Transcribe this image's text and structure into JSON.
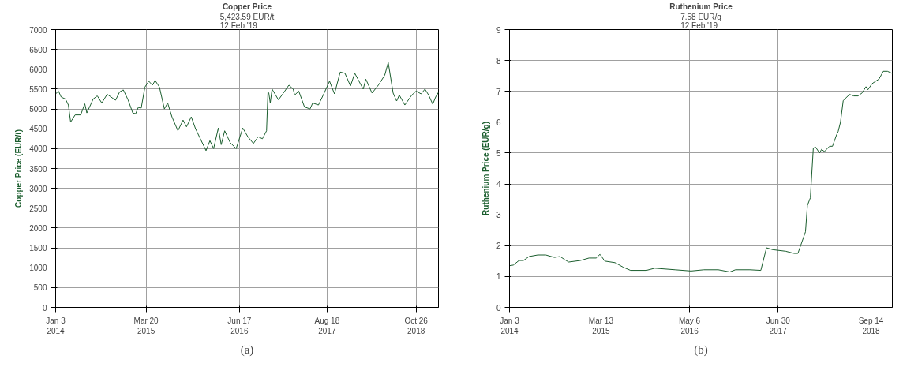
{
  "chart_data": [
    {
      "type": "line",
      "title": "Copper Price",
      "subtitle": "5,423.59 EUR/t\n12 Feb '19",
      "ylabel": "Copper Price (EUR/t)",
      "annotations": [
        "(a)"
      ],
      "xlim": [
        "2014-01-03",
        "2019-02-12"
      ],
      "ylim": [
        0,
        7000
      ],
      "xticks": [
        {
          "value": "2014-01-03",
          "label": "Jan 3\n2014"
        },
        {
          "value": "2015-03-20",
          "label": "Mar 20\n2015"
        },
        {
          "value": "2016-06-17",
          "label": "Jun 17\n2016"
        },
        {
          "value": "2017-08-18",
          "label": "Aug 18\n2017"
        },
        {
          "value": "2018-10-26",
          "label": "Oct 26\n2018"
        }
      ],
      "yticks": [
        0,
        500,
        1000,
        1500,
        2000,
        2500,
        3000,
        3500,
        4000,
        4500,
        5000,
        5500,
        6000,
        6500,
        7000
      ],
      "grid": true,
      "marker": "none",
      "line_style": "solid",
      "series": [
        {
          "color": "#1b5e2e",
          "x": [
            "2014-01-03",
            "2014-01-17",
            "2014-01-30",
            "2014-02-20",
            "2014-03-06",
            "2014-03-17",
            "2014-04-08",
            "2014-05-05",
            "2014-05-25",
            "2014-06-04",
            "2014-07-05",
            "2014-07-25",
            "2014-08-16",
            "2014-09-11",
            "2014-10-22",
            "2014-11-11",
            "2014-11-29",
            "2014-12-22",
            "2015-01-14",
            "2015-01-28",
            "2015-02-10",
            "2015-02-24",
            "2015-03-14",
            "2015-04-02",
            "2015-04-20",
            "2015-05-03",
            "2015-05-24",
            "2015-06-17",
            "2015-07-03",
            "2015-07-24",
            "2015-08-22",
            "2015-09-16",
            "2015-10-03",
            "2015-10-26",
            "2015-11-16",
            "2016-01-06",
            "2016-01-25",
            "2016-02-12",
            "2016-03-06",
            "2016-03-20",
            "2016-04-06",
            "2016-05-03",
            "2016-06-01",
            "2016-07-03",
            "2016-07-28",
            "2016-08-24",
            "2016-09-16",
            "2016-10-07",
            "2016-10-27",
            "2016-11-03",
            "2016-11-07",
            "2016-11-14",
            "2016-11-23",
            "2016-12-24",
            "2017-01-17",
            "2017-02-13",
            "2017-03-06",
            "2017-03-13",
            "2017-04-02",
            "2017-04-30",
            "2017-05-27",
            "2017-06-09",
            "2017-07-07",
            "2017-08-02",
            "2017-08-30",
            "2017-09-23",
            "2017-10-21",
            "2017-11-13",
            "2017-12-10",
            "2017-12-31",
            "2018-02-10",
            "2018-02-23",
            "2018-03-25",
            "2018-04-25",
            "2018-05-26",
            "2018-06-12",
            "2018-07-06",
            "2018-07-23",
            "2018-08-05",
            "2018-09-01",
            "2018-10-05",
            "2018-10-26",
            "2018-11-19",
            "2018-12-08",
            "2018-12-26",
            "2019-01-15",
            "2019-01-29",
            "2019-02-12"
          ],
          "values": [
            5380,
            5450,
            5300,
            5250,
            5100,
            4670,
            4850,
            4850,
            5130,
            4900,
            5250,
            5330,
            5150,
            5370,
            5220,
            5430,
            5480,
            5230,
            4900,
            4880,
            5040,
            5020,
            5550,
            5700,
            5600,
            5720,
            5550,
            5000,
            5150,
            4800,
            4450,
            4720,
            4550,
            4800,
            4500,
            3950,
            4200,
            4000,
            4520,
            4100,
            4450,
            4150,
            4000,
            4520,
            4300,
            4130,
            4300,
            4250,
            4450,
            5430,
            5400,
            5150,
            5500,
            5230,
            5400,
            5600,
            5500,
            5350,
            5450,
            5050,
            5000,
            5150,
            5100,
            5380,
            5700,
            5380,
            5930,
            5900,
            5580,
            5900,
            5500,
            5750,
            5400,
            5600,
            5850,
            6170,
            5400,
            5200,
            5350,
            5100,
            5350,
            5450,
            5380,
            5500,
            5350,
            5120,
            5300,
            5420
          ]
        }
      ]
    },
    {
      "type": "line",
      "title": "Ruthenium Price",
      "subtitle": "7.58 EUR/g\n12 Feb '19",
      "ylabel": "Ruthenium Price (EUR/g)",
      "annotations": [
        "(b)"
      ],
      "xlim": [
        "2014-01-03",
        "2018-12-24"
      ],
      "ylim": [
        0,
        9
      ],
      "xticks": [
        {
          "value": "2014-01-03",
          "label": "Jan 3\n2014"
        },
        {
          "value": "2015-03-13",
          "label": "Mar 13\n2015"
        },
        {
          "value": "2016-05-06",
          "label": "May 6\n2016"
        },
        {
          "value": "2017-06-30",
          "label": "Jun 30\n2017"
        },
        {
          "value": "2018-09-14",
          "label": "Sep 14\n2018"
        }
      ],
      "yticks": [
        0,
        1,
        2,
        3,
        4,
        5,
        6,
        7,
        8,
        9
      ],
      "grid": true,
      "marker": "none",
      "line_style": "solid",
      "series": [
        {
          "color": "#1b5e2e",
          "x": [
            "2014-01-03",
            "2014-01-21",
            "2014-02-17",
            "2014-03-10",
            "2014-04-06",
            "2014-05-17",
            "2014-06-24",
            "2014-08-04",
            "2014-08-31",
            "2014-09-21",
            "2014-10-11",
            "2014-12-05",
            "2015-01-15",
            "2015-02-18",
            "2015-03-08",
            "2015-03-31",
            "2015-05-18",
            "2015-06-27",
            "2015-07-31",
            "2015-10-14",
            "2015-11-23",
            "2016-02-27",
            "2016-05-13",
            "2016-07-13",
            "2016-09-19",
            "2016-11-13",
            "2016-12-10",
            "2017-02-16",
            "2017-04-09",
            "2017-05-06",
            "2017-06-05",
            "2017-08-05",
            "2017-09-14",
            "2017-10-02",
            "2017-11-07",
            "2017-11-16",
            "2017-11-30",
            "2017-12-14",
            "2017-12-24",
            "2018-01-13",
            "2018-01-22",
            "2018-02-05",
            "2018-03-01",
            "2018-03-15",
            "2018-04-04",
            "2018-04-11",
            "2018-04-22",
            "2018-05-05",
            "2018-06-04",
            "2018-06-24",
            "2018-07-14",
            "2018-08-03",
            "2018-08-21",
            "2018-08-30",
            "2018-09-19",
            "2018-10-22",
            "2018-11-11",
            "2018-12-01",
            "2018-12-24"
          ],
          "values": [
            1.35,
            1.37,
            1.52,
            1.52,
            1.65,
            1.7,
            1.7,
            1.62,
            1.65,
            1.55,
            1.47,
            1.52,
            1.6,
            1.6,
            1.72,
            1.5,
            1.45,
            1.3,
            1.2,
            1.2,
            1.27,
            1.22,
            1.18,
            1.22,
            1.22,
            1.15,
            1.22,
            1.22,
            1.2,
            1.93,
            1.87,
            1.82,
            1.75,
            1.75,
            2.45,
            3.3,
            3.55,
            5.15,
            5.2,
            5.0,
            5.12,
            5.05,
            5.22,
            5.22,
            5.6,
            5.7,
            6.0,
            6.7,
            6.9,
            6.85,
            6.85,
            6.95,
            7.15,
            7.05,
            7.25,
            7.4,
            7.65,
            7.65,
            7.58
          ]
        }
      ]
    }
  ]
}
